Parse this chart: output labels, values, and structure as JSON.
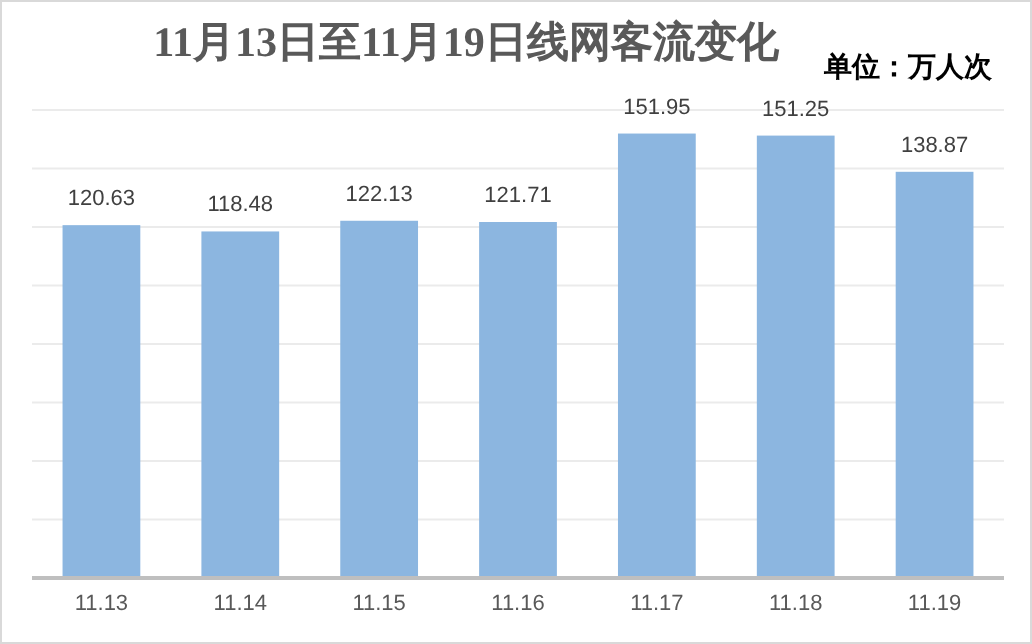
{
  "chart_data": {
    "type": "bar",
    "title": "11月13日至11月19日线网客流变化",
    "annotations": [
      "单位：万人次"
    ],
    "categories": [
      "11.13",
      "11.14",
      "11.15",
      "11.16",
      "11.17",
      "11.18",
      "11.19"
    ],
    "values": [
      120.63,
      118.48,
      122.13,
      121.71,
      151.95,
      151.25,
      138.87
    ],
    "color": "#8cb6e0",
    "ylim": [
      0,
      160
    ],
    "yticks": [
      {
        "value": 0,
        "label": null
      },
      {
        "value": 20,
        "label": null
      },
      {
        "value": 40,
        "label": null
      },
      {
        "value": 60,
        "label": null
      },
      {
        "value": 80,
        "label": null
      },
      {
        "value": 100,
        "label": null
      },
      {
        "value": 120,
        "label": null
      },
      {
        "value": 140,
        "label": null
      },
      {
        "value": 160,
        "label": null
      }
    ],
    "grid": "y",
    "tick_labels": "x",
    "data_labels": true
  }
}
